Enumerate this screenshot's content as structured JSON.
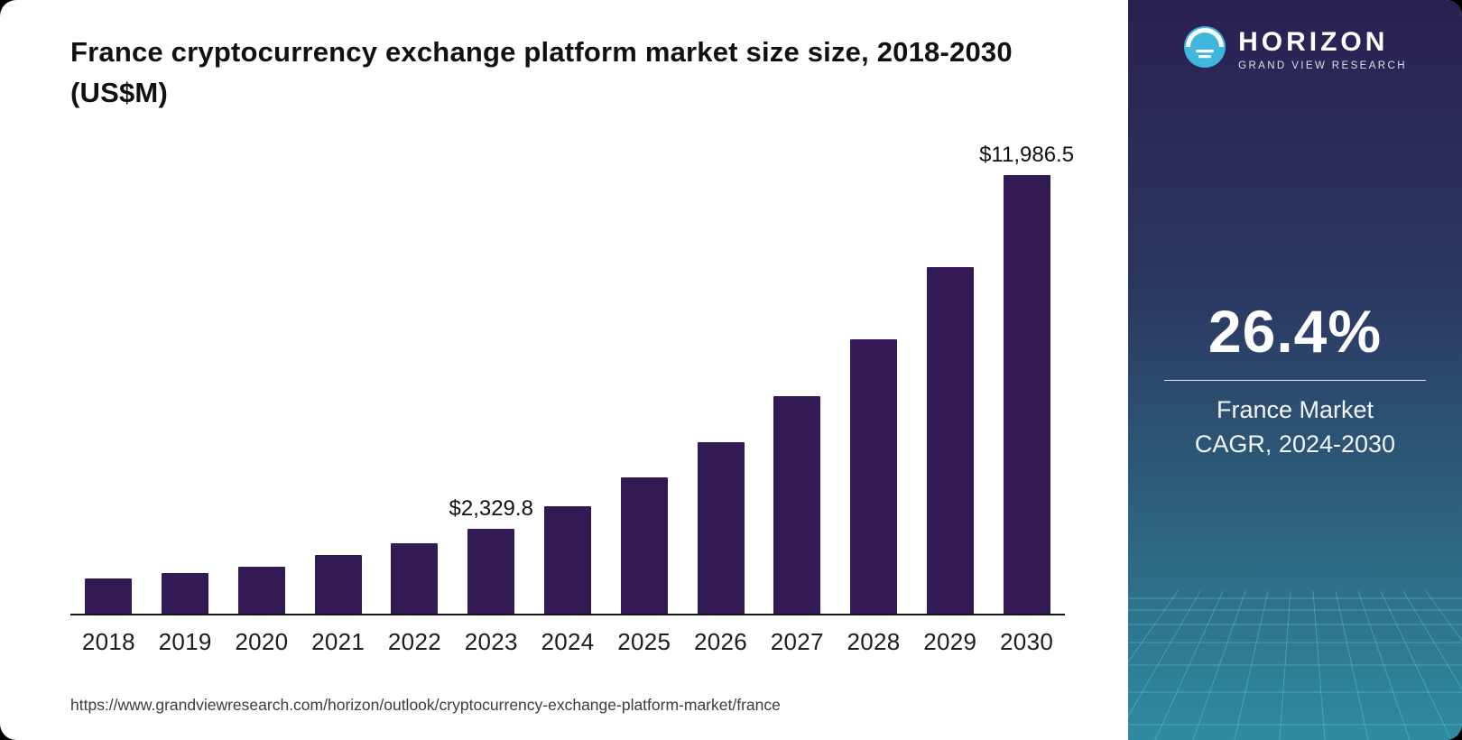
{
  "header": {
    "title": "France cryptocurrency exchange platform market size size, 2018-2030 (US$M)"
  },
  "chart_data": {
    "type": "bar",
    "title": "France cryptocurrency exchange platform market size size, 2018-2030 (US$M)",
    "categories": [
      "2018",
      "2019",
      "2020",
      "2021",
      "2022",
      "2023",
      "2024",
      "2025",
      "2026",
      "2027",
      "2028",
      "2029",
      "2030"
    ],
    "values": [
      950,
      1100,
      1290,
      1600,
      1930,
      2329.8,
      2938,
      3714,
      4694,
      5933,
      7500,
      9480,
      11986.5
    ],
    "annotations": [
      {
        "category": "2023",
        "label": "$2,329.8"
      },
      {
        "category": "2030",
        "label": "$11,986.5"
      }
    ],
    "xlabel": "",
    "ylabel": "",
    "ylim": [
      0,
      12000
    ],
    "grid": false,
    "legend": false,
    "bar_color": "#331a54"
  },
  "footer": {
    "source_url": "https://www.grandviewresearch.com/horizon/outlook/cryptocurrency-exchange-platform-market/france"
  },
  "sidebar": {
    "brand_name": "HORIZON",
    "brand_subtitle": "GRAND VIEW RESEARCH",
    "stat_value": "26.4%",
    "stat_label_line1": "France Market",
    "stat_label_line2": "CAGR, 2024-2030",
    "colors": {
      "gradient_top": "#2a2052",
      "gradient_bottom": "#2f8ba1",
      "accent": "#4cc3e8",
      "bar": "#331a54"
    }
  }
}
